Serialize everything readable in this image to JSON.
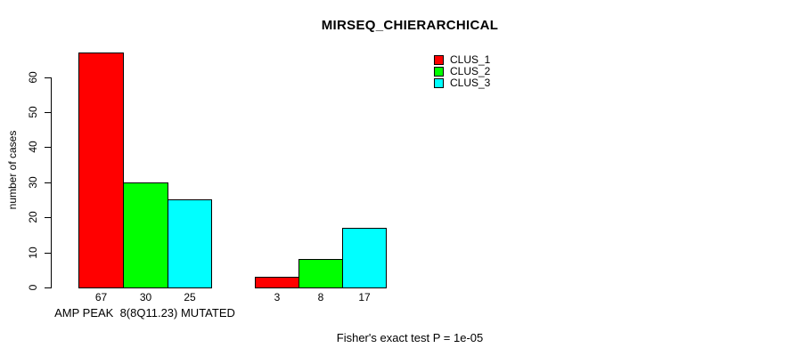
{
  "chart_data": {
    "type": "bar",
    "title": "MIRSEQ_CHIERARCHICAL",
    "ylabel": "number of cases",
    "xlabel": "",
    "ylim": [
      0,
      67
    ],
    "yticks": [
      0,
      10,
      20,
      30,
      40,
      50,
      60
    ],
    "grid": false,
    "legend_position": "top-right",
    "series": [
      {
        "name": "CLUS_1",
        "color": "#ff0000"
      },
      {
        "name": "CLUS_2",
        "color": "#00ff00"
      },
      {
        "name": "CLUS_3",
        "color": "#00ffff"
      }
    ],
    "groups": [
      {
        "label": "AMP PEAK  8(8Q11.23) MUTATED",
        "values": [
          67,
          30,
          25
        ],
        "bar_labels": [
          "67",
          "30",
          "25"
        ]
      },
      {
        "label": "",
        "values": [
          3,
          8,
          17
        ],
        "bar_labels": [
          "3",
          "8",
          "17"
        ]
      }
    ],
    "annotation": "Fisher's exact test P = 1e-05",
    "bar_border_color": "#000000",
    "axis_color": "#000000"
  }
}
